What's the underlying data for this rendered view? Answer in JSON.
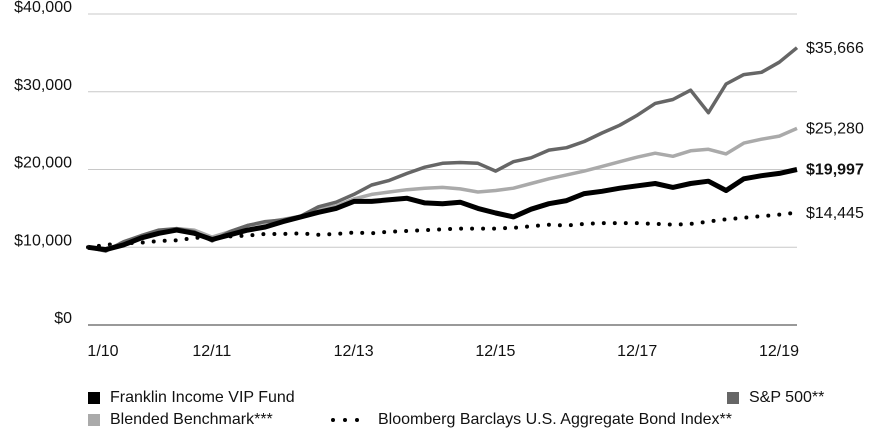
{
  "chart_data": {
    "type": "line",
    "categories": [
      "1/10",
      null,
      null,
      null,
      null,
      null,
      null,
      null,
      "12/11",
      null,
      null,
      null,
      null,
      null,
      null,
      null,
      "12/13",
      null,
      null,
      null,
      null,
      null,
      null,
      null,
      "12/15",
      null,
      null,
      null,
      null,
      null,
      null,
      null,
      "12/17",
      null,
      null,
      null,
      null,
      null,
      null,
      null,
      "12/19"
    ],
    "ylim": [
      0,
      40000
    ],
    "yticks": [
      {
        "value": 0,
        "label": "$0"
      },
      {
        "value": 10000,
        "label": "$10,000"
      },
      {
        "value": 20000,
        "label": "$20,000"
      },
      {
        "value": 30000,
        "label": "$30,000"
      },
      {
        "value": 40000,
        "label": "$40,000"
      }
    ],
    "grid": true,
    "legend": "bottom",
    "series": [
      {
        "name": "Franklin Income VIP Fund",
        "color": "#000000",
        "style": "solid",
        "values": [
          10000,
          9700,
          10300,
          11200,
          11800,
          12200,
          11800,
          11000,
          11600,
          12200,
          12600,
          13300,
          13900,
          14500,
          15000,
          15900,
          15900,
          16100,
          16300,
          15700,
          15600,
          15800,
          15000,
          14400,
          13900,
          14900,
          15600,
          16000,
          16900,
          17200,
          17600,
          17900,
          18200,
          17700,
          18200,
          18500,
          17300,
          18800,
          19200,
          19500,
          19997
        ],
        "value_labels": [
          null,
          null,
          null,
          null,
          null,
          null,
          null,
          null,
          null,
          null,
          null,
          null,
          null,
          null,
          null,
          null,
          null,
          null,
          null,
          null,
          null,
          null,
          null,
          null,
          null,
          null,
          null,
          null,
          null,
          null,
          null,
          null,
          null,
          null,
          null,
          null,
          null,
          null,
          null,
          null,
          "$19,997"
        ]
      },
      {
        "name": "S&P 500**",
        "color": "#666666",
        "style": "solid",
        "values": [
          10000,
          9500,
          10700,
          11500,
          12200,
          12400,
          12000,
          10800,
          12000,
          12800,
          13300,
          13500,
          14000,
          15200,
          15800,
          16800,
          18000,
          18600,
          19500,
          20300,
          20800,
          20900,
          20800,
          19800,
          21000,
          21500,
          22500,
          22800,
          23600,
          24700,
          25700,
          27000,
          28500,
          29000,
          30200,
          27300,
          31000,
          32200,
          32500,
          33800,
          35666
        ],
        "value_labels": [
          null,
          null,
          null,
          null,
          null,
          null,
          null,
          null,
          null,
          null,
          null,
          null,
          null,
          null,
          null,
          null,
          null,
          null,
          null,
          null,
          null,
          null,
          null,
          null,
          null,
          null,
          null,
          null,
          null,
          null,
          null,
          null,
          null,
          null,
          null,
          null,
          null,
          null,
          null,
          null,
          "$35,666"
        ]
      },
      {
        "name": "Blended Benchmark***",
        "color": "#aaaaaa",
        "style": "solid",
        "values": [
          10000,
          9800,
          10500,
          11300,
          12000,
          12400,
          12200,
          11300,
          12000,
          12800,
          13200,
          13600,
          14000,
          14800,
          15300,
          16200,
          16800,
          17100,
          17400,
          17600,
          17700,
          17500,
          17100,
          17300,
          17600,
          18200,
          18800,
          19300,
          19800,
          20400,
          21000,
          21600,
          22100,
          21700,
          22400,
          22600,
          22000,
          23400,
          23900,
          24300,
          25280
        ],
        "value_labels": [
          null,
          null,
          null,
          null,
          null,
          null,
          null,
          null,
          null,
          null,
          null,
          null,
          null,
          null,
          null,
          null,
          null,
          null,
          null,
          null,
          null,
          null,
          null,
          null,
          null,
          null,
          null,
          null,
          null,
          null,
          null,
          null,
          null,
          null,
          null,
          null,
          null,
          null,
          null,
          null,
          "$25,280"
        ]
      },
      {
        "name": "Bloomberg Barclays U.S. Aggregate Bond Index**",
        "color": "#000000",
        "style": "dotted",
        "values": [
          10000,
          10300,
          10500,
          10600,
          10800,
          10900,
          11200,
          11300,
          11400,
          11500,
          11700,
          11700,
          11800,
          11600,
          11700,
          11900,
          11800,
          12000,
          12100,
          12200,
          12300,
          12400,
          12400,
          12400,
          12500,
          12700,
          12900,
          12800,
          13000,
          13100,
          13100,
          13100,
          13000,
          12900,
          13000,
          13300,
          13600,
          13800,
          14000,
          14200,
          14445
        ],
        "value_labels": [
          null,
          null,
          null,
          null,
          null,
          null,
          null,
          null,
          null,
          null,
          null,
          null,
          null,
          null,
          null,
          null,
          null,
          null,
          null,
          null,
          null,
          null,
          null,
          null,
          null,
          null,
          null,
          null,
          null,
          null,
          null,
          null,
          null,
          null,
          null,
          null,
          null,
          null,
          null,
          null,
          "$14,445"
        ]
      }
    ]
  }
}
